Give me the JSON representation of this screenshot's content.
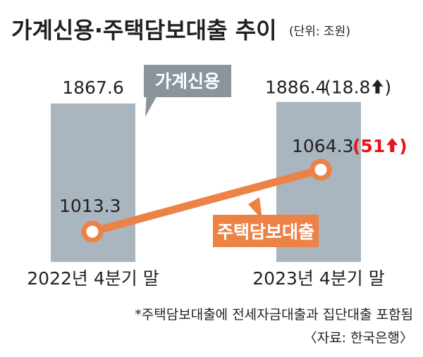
{
  "header": {
    "title": "가계신용·주택담보대출 추이",
    "unit": "(단위: 조원)"
  },
  "chart_data": {
    "type": "bar",
    "categories": [
      "2022년 4분기 말",
      "2023년 4분기 말"
    ],
    "series": [
      {
        "name": "가계신용",
        "kind": "bar",
        "values": [
          1867.6,
          1886.4
        ],
        "labels": [
          "1867.6",
          "1886.4"
        ],
        "change": "(18.8",
        "color": "#7f8a94"
      },
      {
        "name": "주택담보대출",
        "kind": "line",
        "values": [
          1013.3,
          1064.3
        ],
        "labels": [
          "1013.3",
          "1064.3"
        ],
        "change": "(51",
        "color": "#ec8246",
        "change_color": "#e8141c"
      }
    ],
    "bar_color": "#a9b5bf"
  },
  "footer": {
    "note": "*주택담보대출에 전세자금대출과 집단대출 포함됨",
    "source": "〈자료: 한국은행〉"
  }
}
